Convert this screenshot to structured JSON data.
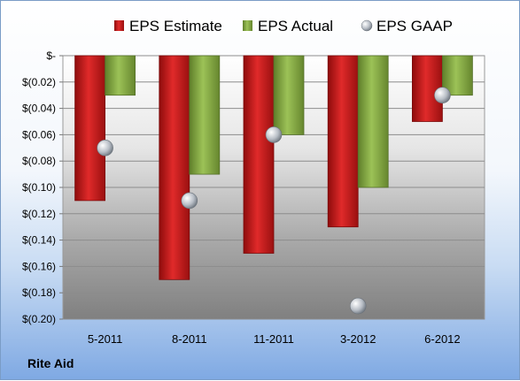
{
  "chart_data": {
    "type": "bar",
    "categories": [
      "5-2011",
      "8-2011",
      "11-2011",
      "3-2012",
      "6-2012"
    ],
    "series": [
      {
        "name": "EPS Estimate",
        "values": [
          -0.11,
          -0.17,
          -0.15,
          -0.13,
          -0.05
        ],
        "color": "#d11f1f"
      },
      {
        "name": "EPS Actual",
        "values": [
          -0.03,
          -0.09,
          -0.06,
          -0.1,
          -0.03
        ],
        "color": "#8fb34a"
      },
      {
        "name": "EPS GAAP",
        "values": [
          -0.07,
          -0.11,
          -0.06,
          -0.19,
          -0.03
        ],
        "color": "#9aa3ad",
        "style": "bubble"
      }
    ],
    "ylim": [
      -0.2,
      0
    ],
    "yticks": [
      0,
      -0.02,
      -0.04,
      -0.06,
      -0.08,
      -0.1,
      -0.12,
      -0.14,
      -0.16,
      -0.18,
      -0.2
    ],
    "ytick_labels": [
      "$-",
      "$(0.02)",
      "$(0.04)",
      "$(0.06)",
      "$(0.08)",
      "$(0.10)",
      "$(0.12)",
      "$(0.14)",
      "$(0.16)",
      "$(0.18)",
      "$(0.20)"
    ],
    "legend_position": "top",
    "grid": true
  },
  "company_label": "Rite Aid"
}
